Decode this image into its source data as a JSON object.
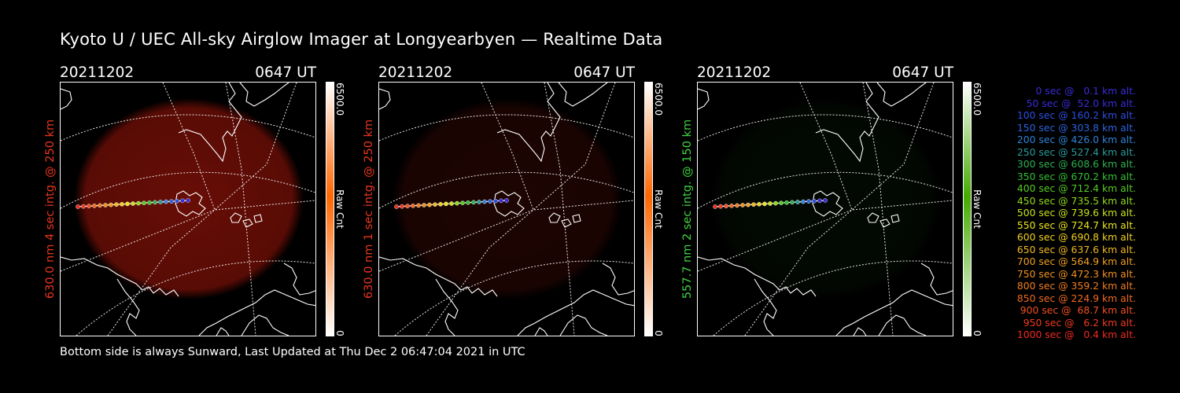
{
  "title": "Kyoto U / UEC All-sky Airglow Imager at Longyearbyen — Realtime Data",
  "footer": "Bottom side is always Sunward, Last Updated at Thu Dec  2 06:47:04 2021 in UTC",
  "panels": [
    {
      "date": "20211202",
      "time": "0647 UT",
      "ylabel": "630.0 nm 4 sec intg. @ 250 km",
      "label_color": "#e8361c",
      "cbar_max": "6500.0",
      "cbar_min": "0",
      "cbar_unit": "Raw Cnt",
      "cbar_color": "#ff6600",
      "glow_color": "#8a1208",
      "glow_level": 0.75
    },
    {
      "date": "20211202",
      "time": "0647 UT",
      "ylabel": "630.0 nm 1 sec intg. @ 250 km",
      "label_color": "#e8361c",
      "cbar_max": "6500.0",
      "cbar_min": "0",
      "cbar_unit": "Raw Cnt",
      "cbar_color": "#ff6600",
      "glow_color": "#4a0c06",
      "glow_level": 0.4
    },
    {
      "date": "20211202",
      "time": "0647 UT",
      "ylabel": "557.7 nm 2 sec intg. @ 150 km",
      "label_color": "#3fd43f",
      "cbar_max": "6500.0",
      "cbar_min": "0",
      "cbar_unit": "Raw Cnt",
      "cbar_color": "#44aa00",
      "glow_color": "#0e2a0c",
      "glow_level": 0.2
    }
  ],
  "legend": [
    {
      "text": "0 sec @   0.1 km alt.",
      "color": "#3a2bd8"
    },
    {
      "text": "50 sec @  52.0 km alt.",
      "color": "#3a2bd8"
    },
    {
      "text": "100 sec @ 160.2 km alt.",
      "color": "#2c4ee0"
    },
    {
      "text": "150 sec @ 303.8 km alt.",
      "color": "#2c63e0"
    },
    {
      "text": "200 sec @ 426.0 km alt.",
      "color": "#2f83d8"
    },
    {
      "text": "250 sec @ 527.4 km alt.",
      "color": "#2a9a9a"
    },
    {
      "text": "300 sec @ 608.6 km alt.",
      "color": "#2fb052"
    },
    {
      "text": "350 sec @ 670.2 km alt.",
      "color": "#33c033"
    },
    {
      "text": "400 sec @ 712.4 km alt.",
      "color": "#55cc22"
    },
    {
      "text": "450 sec @ 735.5 km alt.",
      "color": "#90d81c"
    },
    {
      "text": "500 sec @ 739.6 km alt.",
      "color": "#c8e01c"
    },
    {
      "text": "550 sec @ 724.7 km alt.",
      "color": "#e8e41e"
    },
    {
      "text": "600 sec @ 690.8 km alt.",
      "color": "#f0d020"
    },
    {
      "text": "650 sec @ 637.6 km alt.",
      "color": "#f0b820"
    },
    {
      "text": "700 sec @ 564.9 km alt.",
      "color": "#f0a020"
    },
    {
      "text": "750 sec @ 472.3 km alt.",
      "color": "#f09020"
    },
    {
      "text": "800 sec @ 359.2 km alt.",
      "color": "#f07c20"
    },
    {
      "text": "850 sec @ 224.9 km alt.",
      "color": "#f06a20"
    },
    {
      "text": "900 sec @  68.7 km alt.",
      "color": "#f05020"
    },
    {
      "text": "950 sec @   6.2 km alt.",
      "color": "#f03a20"
    },
    {
      "text": "1000 sec @   0.4 km alt.",
      "color": "#f02a20"
    }
  ]
}
